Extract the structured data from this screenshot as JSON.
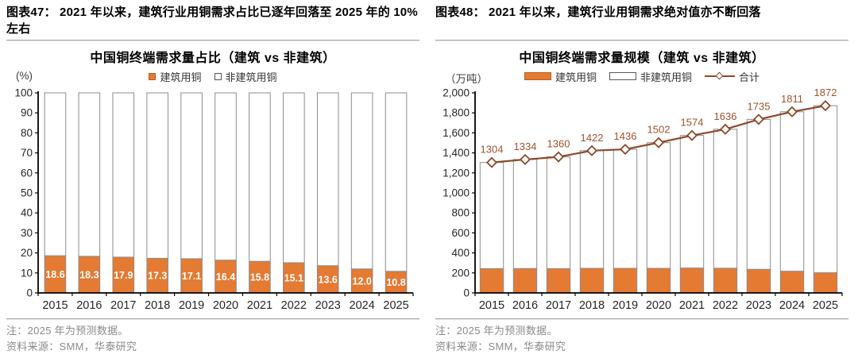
{
  "colors": {
    "orange": "#E57A33",
    "orange_border": "#b85a1e",
    "bar_outline": "#8C8C8C",
    "line": "#8E4A2B",
    "line_label": "#A0522D",
    "axis": "#000000",
    "tick_label": "#262626",
    "bar_label": "#FFFFFF",
    "note_gray": "#8a8a8a"
  },
  "figures": [
    {
      "header": "图表47： 2021 年以来，建筑行业用铜需求占比已逐年回落至 2025 年的 10%左右",
      "note": "注：2025 年为预测数据。",
      "source": "资料来源：SMM，华泰研究"
    },
    {
      "header": "图表48： 2021 年以来，建筑行业用铜需求绝对值亦不断回落",
      "note": "注：2025 年为预测数据。",
      "source": "资料来源：SMM，华泰研究"
    }
  ],
  "chart_data": [
    {
      "type": "bar",
      "stacked": true,
      "title": "中国铜终端需求量占比（建筑 vs 非建筑）",
      "unit_label": "(%)",
      "categories": [
        "2015",
        "2016",
        "2017",
        "2018",
        "2019",
        "2020",
        "2021",
        "2022",
        "2023",
        "2024",
        "2025"
      ],
      "series": [
        {
          "name": "建筑用铜",
          "fill": "orange",
          "show_labels": true,
          "label_decimals": 1,
          "values": [
            18.6,
            18.3,
            17.9,
            17.3,
            17.1,
            16.4,
            15.8,
            15.1,
            13.6,
            12.0,
            10.8
          ]
        },
        {
          "name": "非建筑用铜",
          "fill": "white",
          "values": [
            81.4,
            81.7,
            82.1,
            82.7,
            82.9,
            83.6,
            84.2,
            84.9,
            86.4,
            88.0,
            89.2
          ]
        }
      ],
      "ylim": [
        0,
        100
      ],
      "ytick_step": 10,
      "grid": false,
      "legend_position": "top"
    },
    {
      "type": "bar+line",
      "stacked": true,
      "title": "中国铜终端需求量规模（建筑 vs 非建筑）",
      "unit_label": "（万吨）",
      "categories": [
        "2015",
        "2016",
        "2017",
        "2018",
        "2019",
        "2020",
        "2021",
        "2022",
        "2023",
        "2024",
        "2025"
      ],
      "series": [
        {
          "name": "建筑用铜",
          "fill": "orange",
          "values": [
            243,
            244,
            243,
            246,
            246,
            246,
            249,
            247,
            236,
            217,
            202
          ]
        },
        {
          "name": "非建筑用铜",
          "fill": "white",
          "values": [
            1061,
            1090,
            1117,
            1176,
            1190,
            1256,
            1325,
            1389,
            1499,
            1594,
            1670
          ]
        }
      ],
      "line": {
        "name": "合计",
        "show_labels": true,
        "values": [
          1304,
          1334,
          1360,
          1422,
          1436,
          1502,
          1574,
          1636,
          1735,
          1811,
          1872
        ]
      },
      "ylim": [
        0,
        2000
      ],
      "ytick_step": 200,
      "grid": false,
      "legend_position": "top"
    }
  ]
}
